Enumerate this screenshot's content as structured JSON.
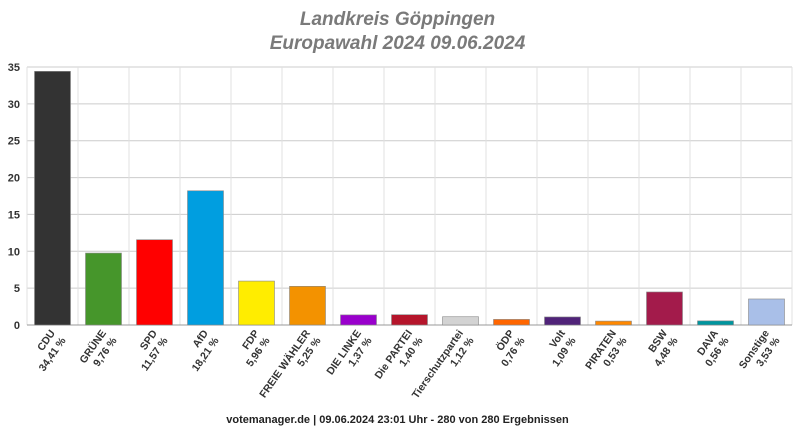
{
  "chart_data": {
    "type": "bar",
    "title": "Landkreis Göppingen",
    "subtitle": "Europawahl 2024 09.06.2024",
    "categories": [
      "CDU",
      "GRÜNE",
      "SPD",
      "AfD",
      "FDP",
      "FREIE WÄHLER",
      "DIE LINKE",
      "Die PARTEI",
      "Tierschutzpartei",
      "ÖDP",
      "Volt",
      "PIRATEN",
      "BSW",
      "DAVA",
      "Sonstige"
    ],
    "values": [
      34.41,
      9.76,
      11.57,
      18.21,
      5.96,
      5.25,
      1.37,
      1.4,
      1.12,
      0.76,
      1.09,
      0.53,
      4.48,
      0.56,
      3.53
    ],
    "value_labels": [
      "34,41 %",
      "9,76 %",
      "11,57 %",
      "18,21 %",
      "5,96 %",
      "5,25 %",
      "1,37 %",
      "1,40 %",
      "1,12 %",
      "0,76 %",
      "1,09 %",
      "0,53 %",
      "4,48 %",
      "0,56 %",
      "3,53 %"
    ],
    "colors": [
      "#333333",
      "#46962b",
      "#ff0000",
      "#009ee0",
      "#ffed00",
      "#f39200",
      "#9900cc",
      "#b5152b",
      "#d3d3d3",
      "#ff6600",
      "#502379",
      "#ff8800",
      "#a31b4b",
      "#00959e",
      "#a9bfe8"
    ],
    "ylim": [
      0,
      35
    ],
    "yticks": [
      0,
      5,
      10,
      15,
      20,
      25,
      30,
      35
    ],
    "grid": true,
    "xlabel": "",
    "ylabel": ""
  },
  "footer": "votemanager.de | 09.06.2024 23:01 Uhr - 280 von 280 Ergebnissen"
}
